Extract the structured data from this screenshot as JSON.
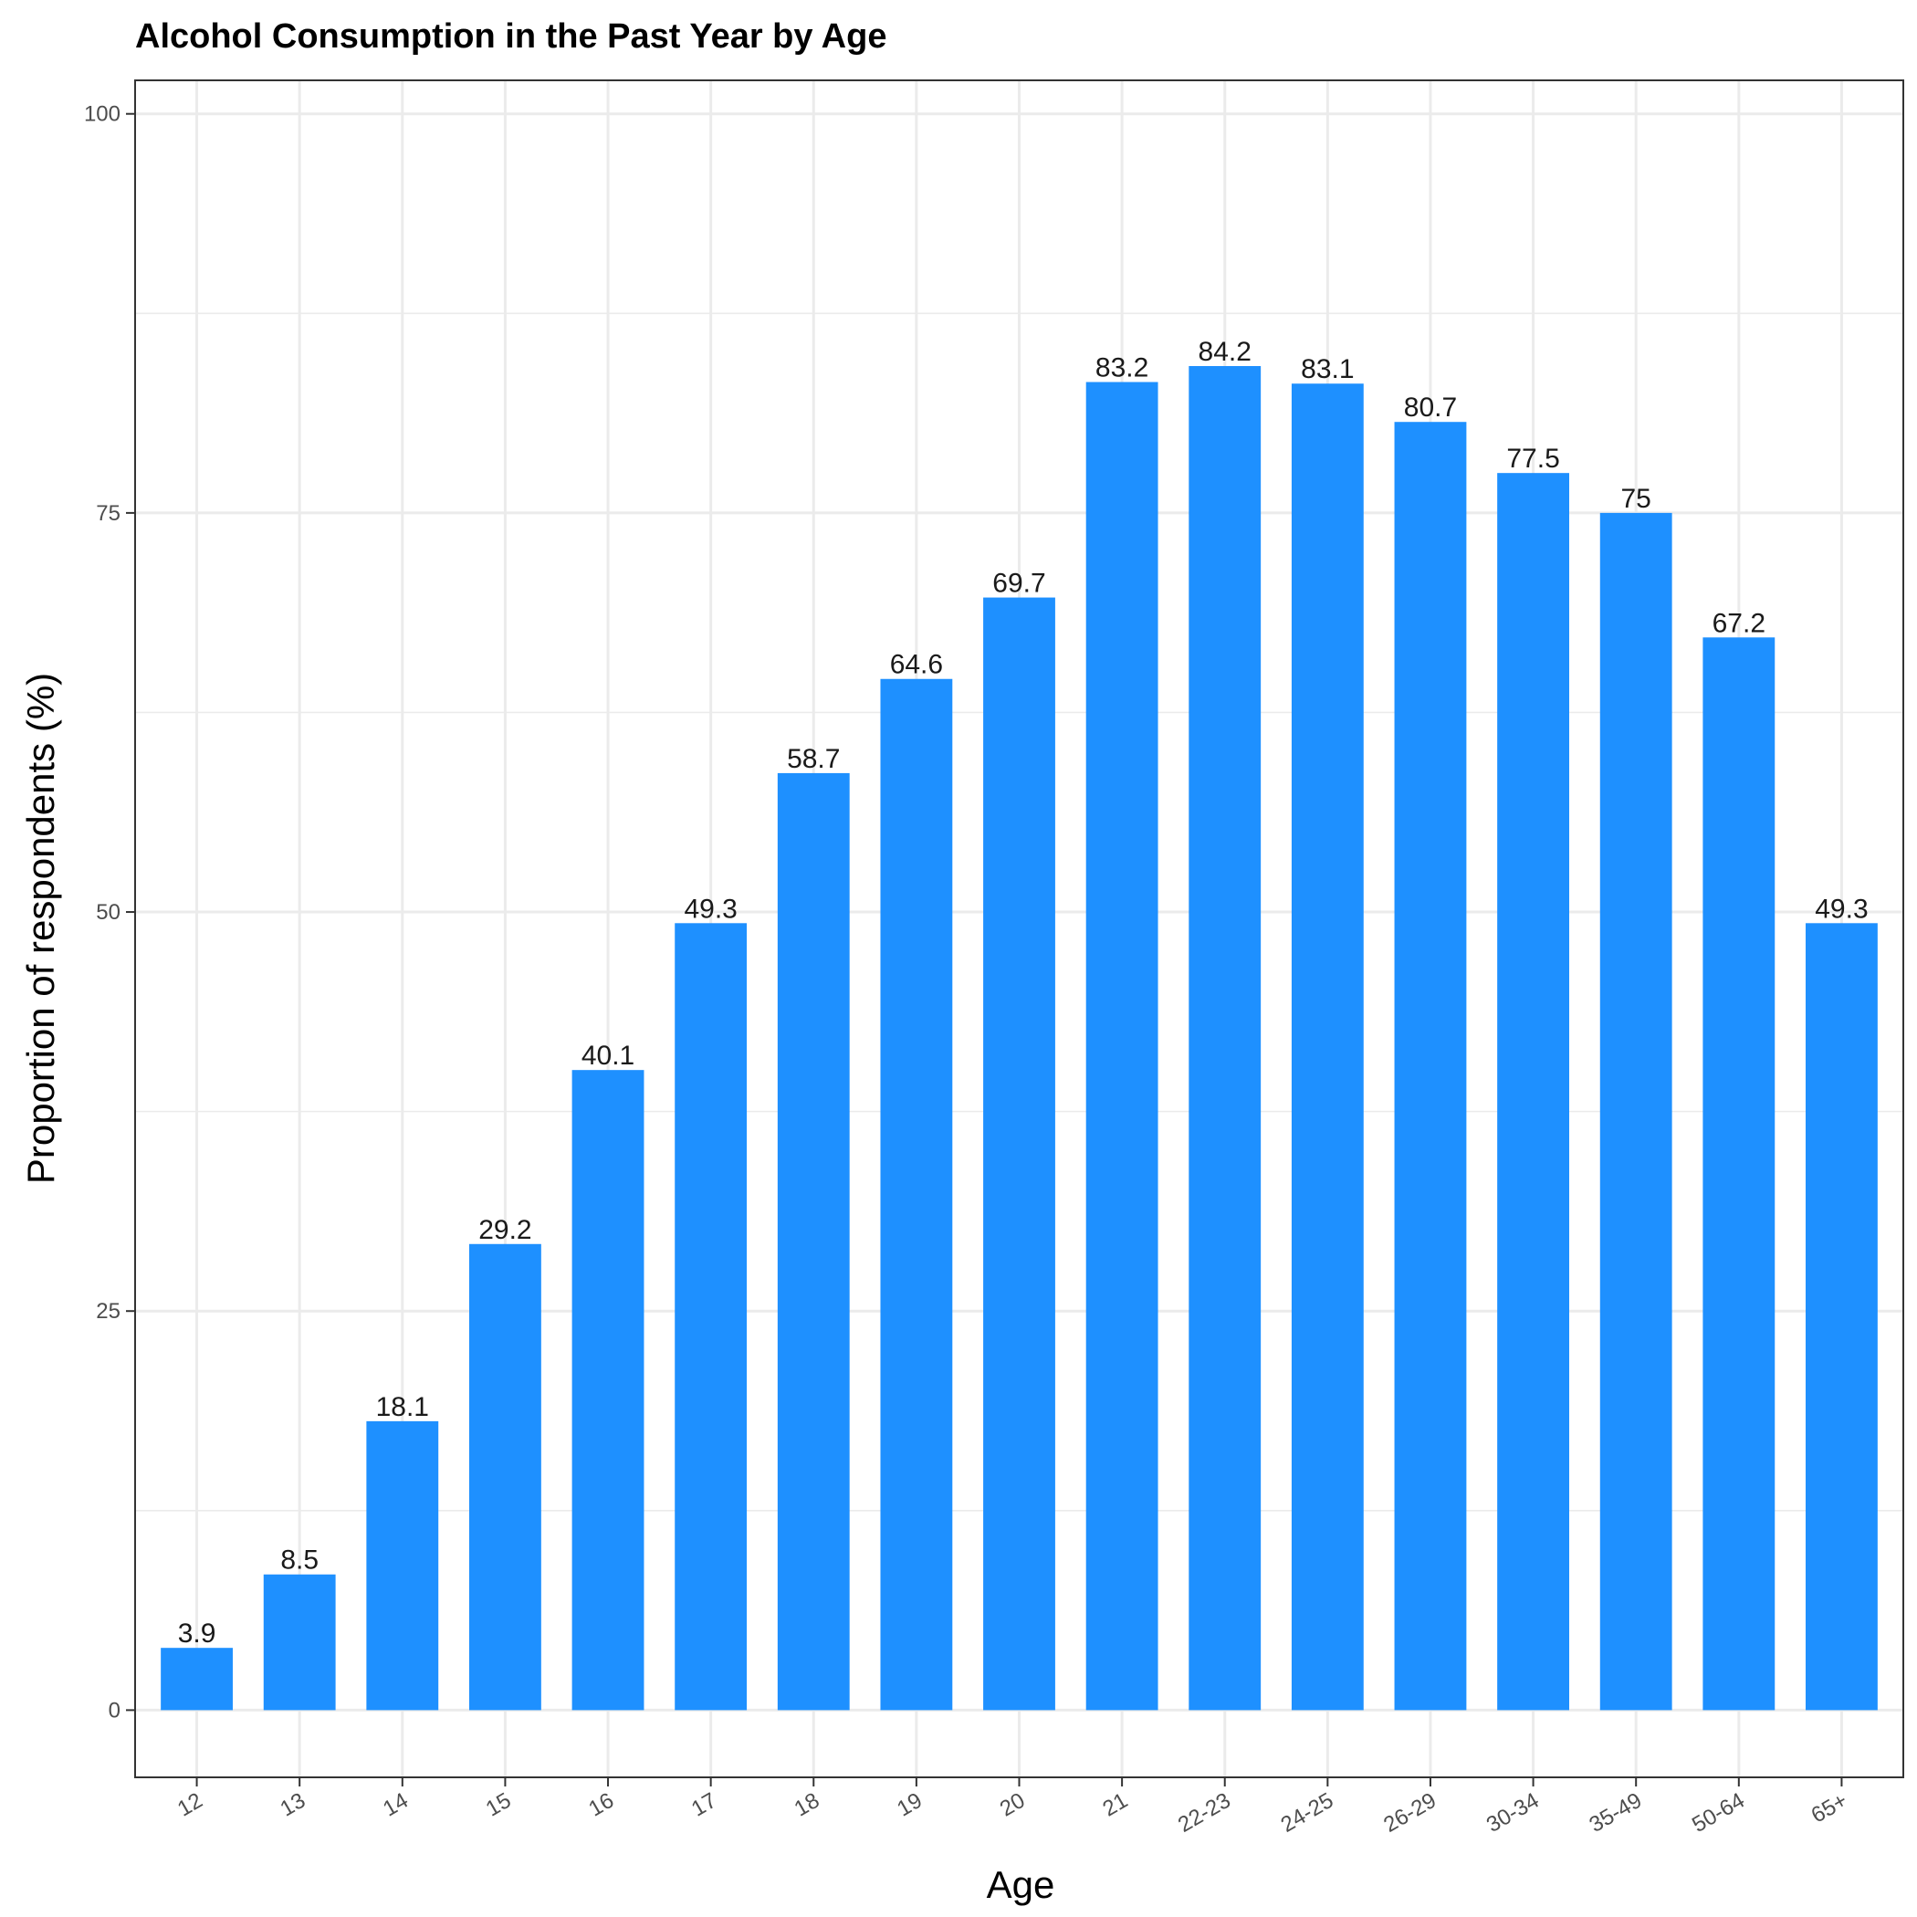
{
  "chart_data": {
    "type": "bar",
    "title": "Alcohol Consumption in the Past Year by Age",
    "xlabel": "Age",
    "ylabel": "Proportion of respondents (%)",
    "categories": [
      "12",
      "13",
      "14",
      "15",
      "16",
      "17",
      "18",
      "19",
      "20",
      "21",
      "22-23",
      "24-25",
      "26-29",
      "30-34",
      "35-49",
      "50-64",
      "65+"
    ],
    "values": [
      3.9,
      8.5,
      18.1,
      29.2,
      40.1,
      49.3,
      58.7,
      64.6,
      69.7,
      83.2,
      84.2,
      83.1,
      80.7,
      77.5,
      75,
      67.2,
      49.3
    ],
    "data_labels": [
      "3.9",
      "8.5",
      "18.1",
      "29.2",
      "40.1",
      "49.3",
      "58.7",
      "64.6",
      "69.7",
      "83.2",
      "84.2",
      "83.1",
      "80.7",
      "77.5",
      "75",
      "67.2",
      "49.3"
    ],
    "ylim": [
      -4.21,
      102.1
    ],
    "yticks": [
      0,
      25,
      50,
      75,
      100
    ],
    "ytick_labels": [
      "0",
      "25",
      "50",
      "75",
      "100"
    ],
    "grid": true,
    "legend": "none",
    "bar_color": "#1E90FF"
  }
}
